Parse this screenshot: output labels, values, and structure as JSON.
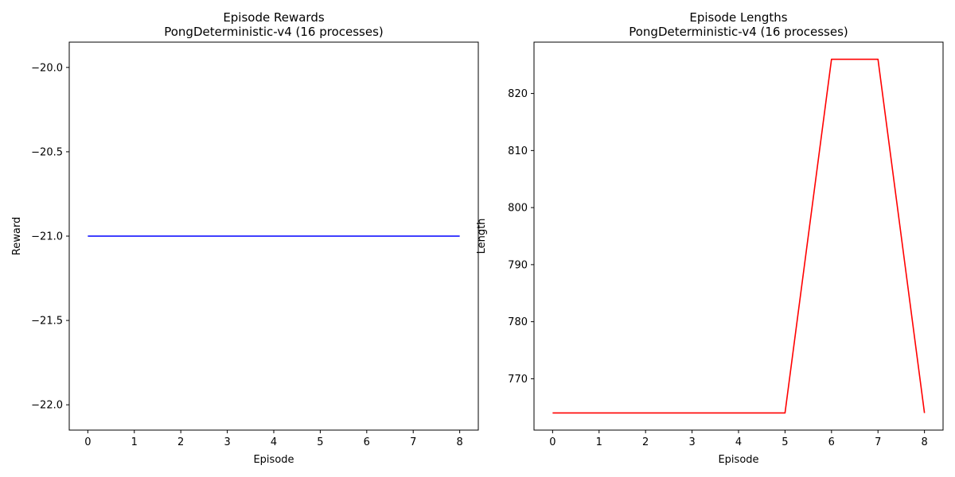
{
  "chart_data": [
    {
      "type": "line",
      "title": "Episode Rewards\nPongDeterministic-v4 (16 processes)",
      "xlabel": "Episode",
      "ylabel": "Reward",
      "x": [
        0,
        1,
        2,
        3,
        4,
        5,
        6,
        7,
        8
      ],
      "series": [
        {
          "values": [
            -21,
            -21,
            -21,
            -21,
            -21,
            -21,
            -21,
            -21,
            -21
          ],
          "color": "#0000ff"
        }
      ],
      "xlim": [
        -0.4,
        8.4
      ],
      "ylim": [
        -22.15,
        -19.85
      ],
      "xticks": [
        0,
        1,
        2,
        3,
        4,
        5,
        6,
        7,
        8
      ],
      "xtick_labels": [
        "0",
        "1",
        "2",
        "3",
        "4",
        "5",
        "6",
        "7",
        "8"
      ],
      "yticks": [
        -20.0,
        -20.5,
        -21.0,
        -21.5,
        -22.0
      ],
      "ytick_labels": [
        "−20.0",
        "−20.5",
        "−21.0",
        "−21.5",
        "−22.0"
      ],
      "grid": false,
      "legend": false
    },
    {
      "type": "line",
      "title": "Episode Lengths\nPongDeterministic-v4 (16 processes)",
      "xlabel": "Episode",
      "ylabel": "Length",
      "x": [
        0,
        1,
        2,
        3,
        4,
        5,
        6,
        7,
        8
      ],
      "series": [
        {
          "values": [
            764,
            764,
            764,
            764,
            764,
            764,
            826,
            826,
            764
          ],
          "color": "#ff0000"
        }
      ],
      "xlim": [
        -0.4,
        8.4
      ],
      "ylim": [
        761,
        829
      ],
      "xticks": [
        0,
        1,
        2,
        3,
        4,
        5,
        6,
        7,
        8
      ],
      "xtick_labels": [
        "0",
        "1",
        "2",
        "3",
        "4",
        "5",
        "6",
        "7",
        "8"
      ],
      "yticks": [
        770,
        780,
        790,
        800,
        810,
        820
      ],
      "ytick_labels": [
        "770",
        "780",
        "790",
        "800",
        "810",
        "820"
      ],
      "grid": false,
      "legend": false
    }
  ]
}
